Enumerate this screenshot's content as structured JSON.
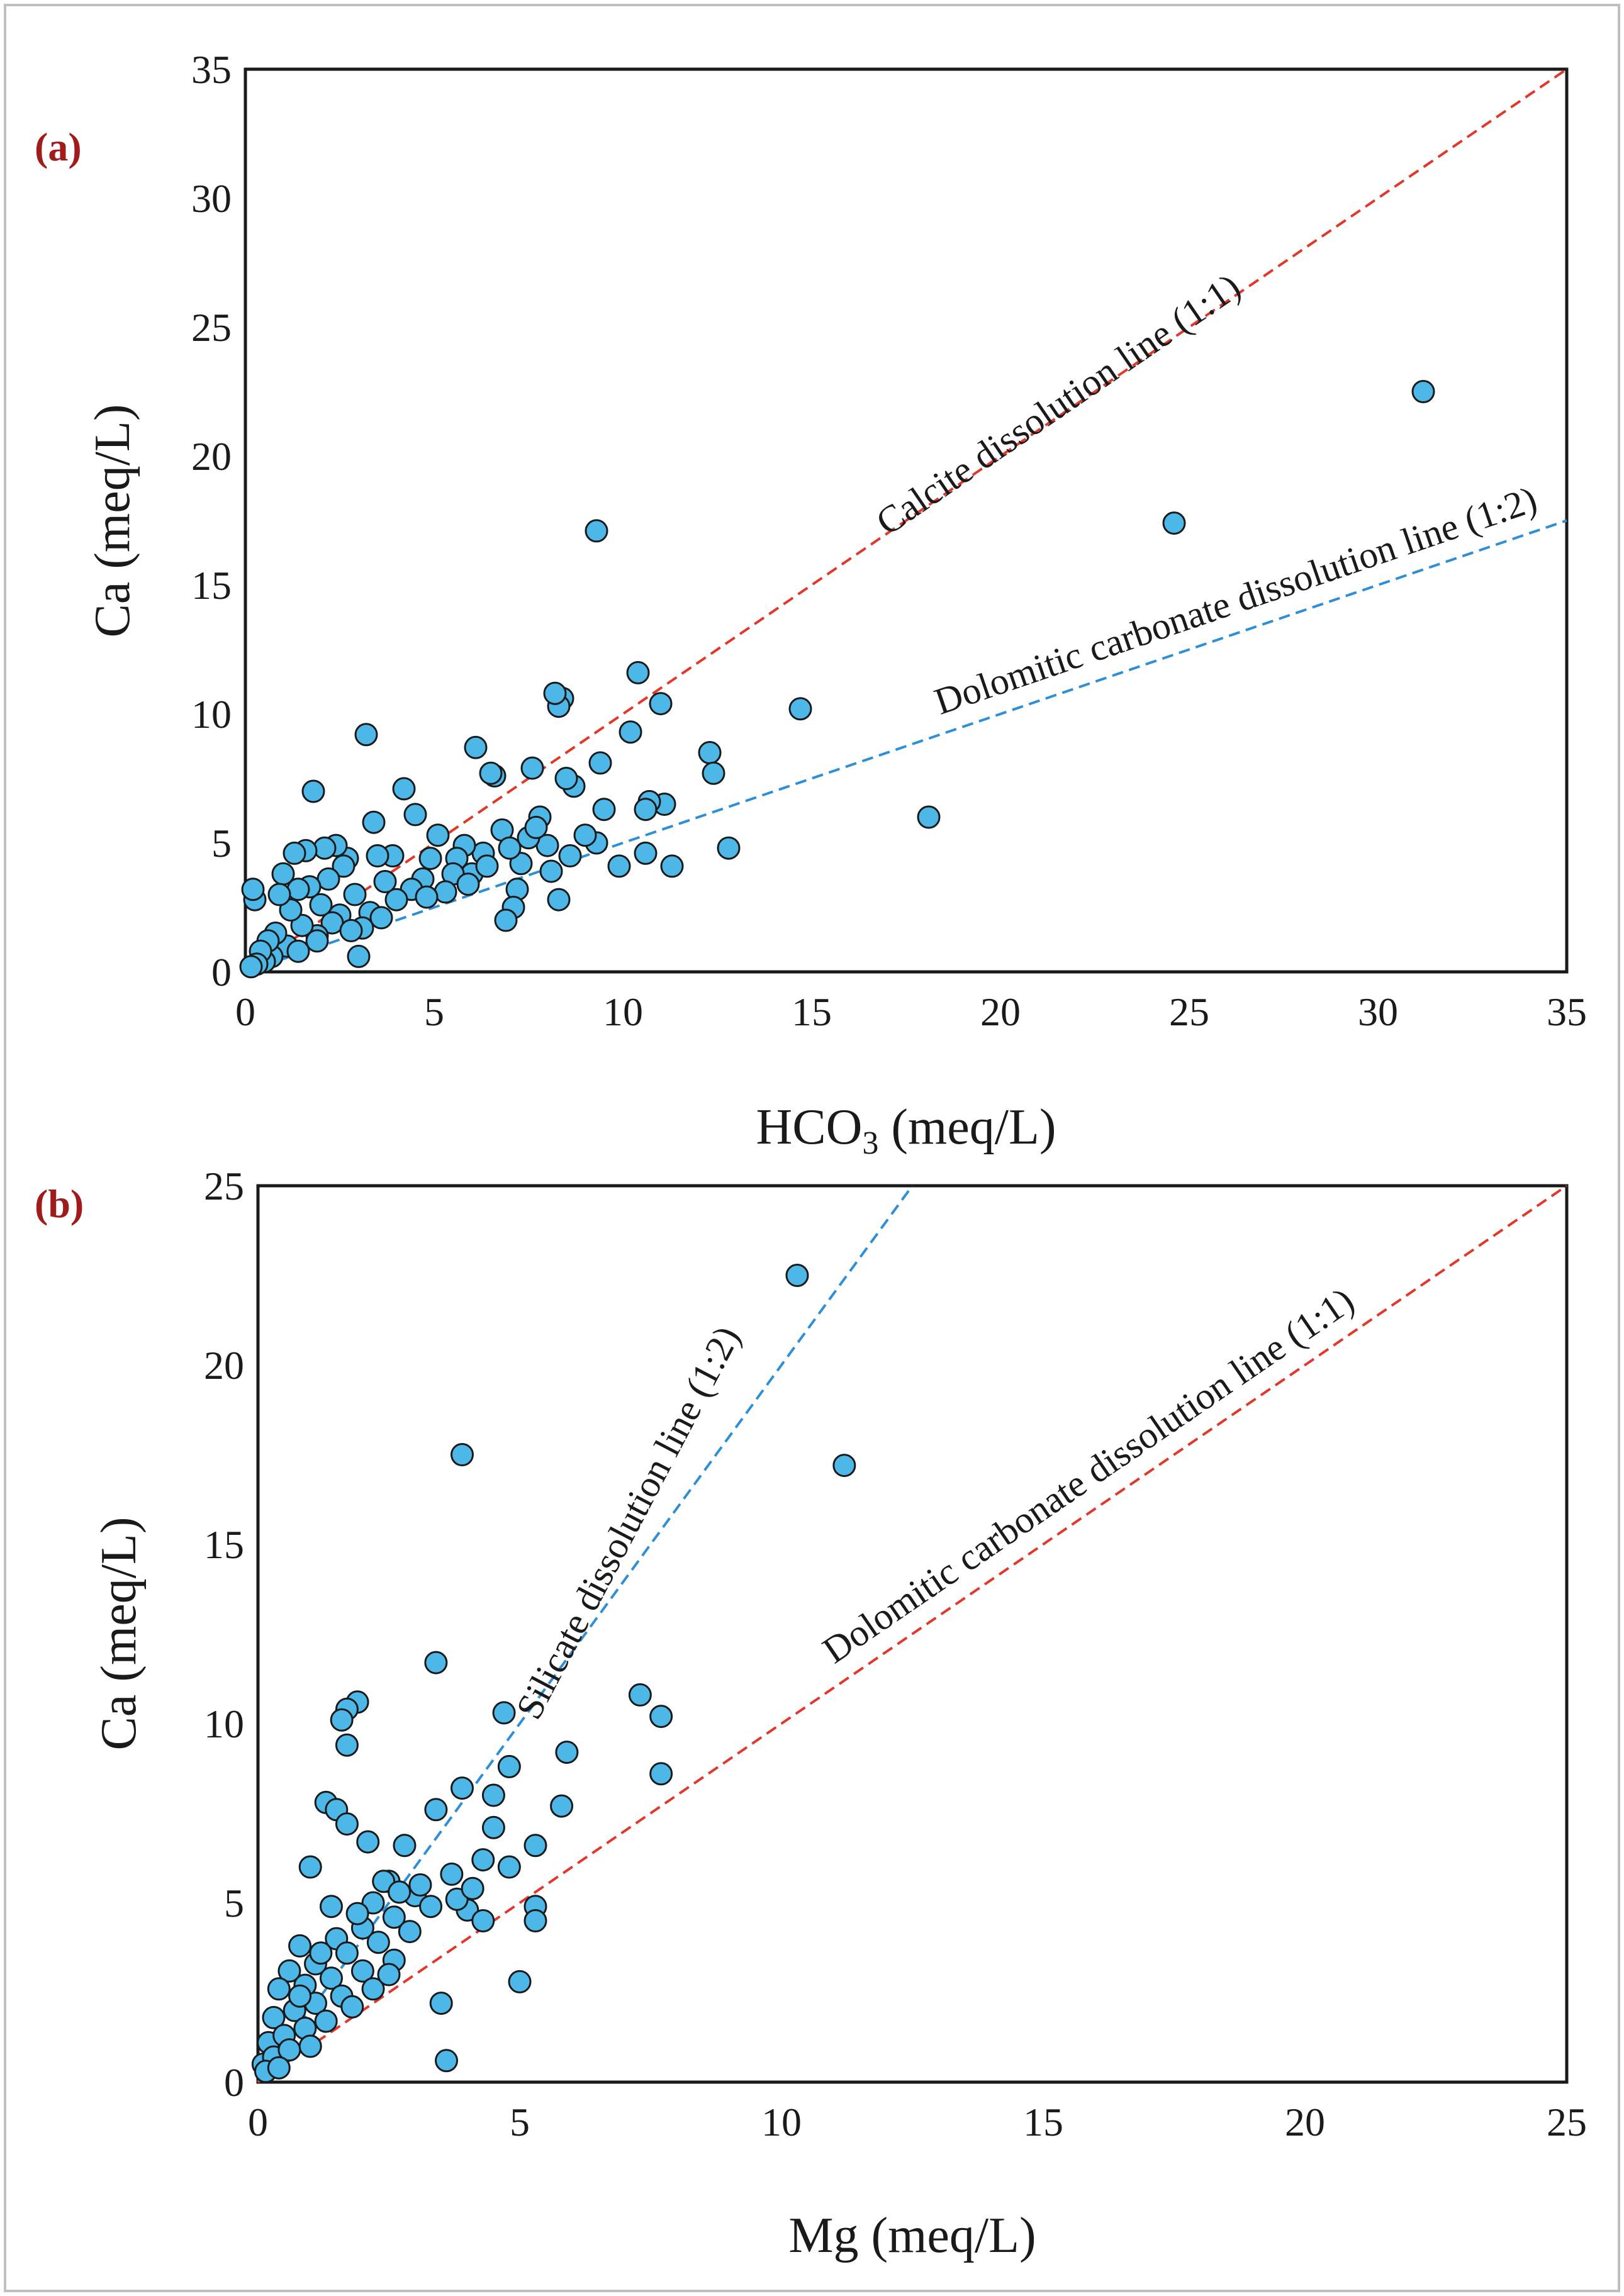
{
  "figure": {
    "border_color": "#bfbfbf",
    "marker_fill": "#4db8e8",
    "marker_stroke": "#1a1a1a"
  },
  "chart_data": [
    {
      "type": "scatter",
      "panel_label": "(a)",
      "xlabel": "HCO3 (meq/L)",
      "xlabel_parts": {
        "base": "HCO",
        "sub": "3",
        "rest": " (meq/L)"
      },
      "ylabel": "Ca (meq/L)",
      "xlim": [
        0,
        35
      ],
      "ylim": [
        0,
        35
      ],
      "xticks": [
        "0",
        "5",
        "10",
        "15",
        "20",
        "25",
        "30",
        "35"
      ],
      "yticks": [
        "0",
        "5",
        "10",
        "15",
        "20",
        "25",
        "30",
        "35"
      ],
      "tick_step": 5,
      "reference_lines": [
        {
          "label": "Calcite dissolution line (1:1)",
          "slope": 1,
          "color": "#e0392b"
        },
        {
          "label": "Dolomitic carbonate dissolution line (1:2)",
          "slope": 0.5,
          "color": "#2f8fd6"
        }
      ],
      "points": [
        [
          31.2,
          22.5
        ],
        [
          24.6,
          17.4
        ],
        [
          9.3,
          17.1
        ],
        [
          18.1,
          6.0
        ],
        [
          14.7,
          10.2
        ],
        [
          12.8,
          4.8
        ],
        [
          12.3,
          8.5
        ],
        [
          12.4,
          7.7
        ],
        [
          11.3,
          4.1
        ],
        [
          11.0,
          10.4
        ],
        [
          11.1,
          6.5
        ],
        [
          10.7,
          6.6
        ],
        [
          10.6,
          6.3
        ],
        [
          10.4,
          11.6
        ],
        [
          10.6,
          4.6
        ],
        [
          10.2,
          9.3
        ],
        [
          9.9,
          4.1
        ],
        [
          9.5,
          6.3
        ],
        [
          9.4,
          8.1
        ],
        [
          9.3,
          5.0
        ],
        [
          9.0,
          5.3
        ],
        [
          8.7,
          7.2
        ],
        [
          8.6,
          4.5
        ],
        [
          8.4,
          10.6
        ],
        [
          8.3,
          10.3
        ],
        [
          8.5,
          7.5
        ],
        [
          8.2,
          10.8
        ],
        [
          8.3,
          2.8
        ],
        [
          8.0,
          4.9
        ],
        [
          7.8,
          6.0
        ],
        [
          7.6,
          7.9
        ],
        [
          7.5,
          5.2
        ],
        [
          7.3,
          4.2
        ],
        [
          7.2,
          3.2
        ],
        [
          7.1,
          2.5
        ],
        [
          6.9,
          2.0
        ],
        [
          6.8,
          5.5
        ],
        [
          6.6,
          7.6
        ],
        [
          6.5,
          7.7
        ],
        [
          6.3,
          4.6
        ],
        [
          6.1,
          8.7
        ],
        [
          6.0,
          3.8
        ],
        [
          5.8,
          4.9
        ],
        [
          5.6,
          4.4
        ],
        [
          5.5,
          3.8
        ],
        [
          5.3,
          3.1
        ],
        [
          5.1,
          5.3
        ],
        [
          4.9,
          4.4
        ],
        [
          4.7,
          3.6
        ],
        [
          4.5,
          6.1
        ],
        [
          4.4,
          3.2
        ],
        [
          4.2,
          7.1
        ],
        [
          4.0,
          2.8
        ],
        [
          3.9,
          4.5
        ],
        [
          3.7,
          3.5
        ],
        [
          3.5,
          4.5
        ],
        [
          3.4,
          5.8
        ],
        [
          3.3,
          2.3
        ],
        [
          3.2,
          9.2
        ],
        [
          3.1,
          1.7
        ],
        [
          3.0,
          0.6
        ],
        [
          2.9,
          3.0
        ],
        [
          2.7,
          4.4
        ],
        [
          2.6,
          4.1
        ],
        [
          2.5,
          2.2
        ],
        [
          2.4,
          4.9
        ],
        [
          2.3,
          1.9
        ],
        [
          2.2,
          3.6
        ],
        [
          2.1,
          4.8
        ],
        [
          2.0,
          2.6
        ],
        [
          1.9,
          1.4
        ],
        [
          1.8,
          7.0
        ],
        [
          1.7,
          3.3
        ],
        [
          1.6,
          4.7
        ],
        [
          1.5,
          1.8
        ],
        [
          1.4,
          3.2
        ],
        [
          1.3,
          4.6
        ],
        [
          1.2,
          2.4
        ],
        [
          1.1,
          1.0
        ],
        [
          1.0,
          3.8
        ],
        [
          0.9,
          3.0
        ],
        [
          0.8,
          1.5
        ],
        [
          0.7,
          0.6
        ],
        [
          0.6,
          1.2
        ],
        [
          0.5,
          0.4
        ],
        [
          0.4,
          0.8
        ],
        [
          0.3,
          0.3
        ],
        [
          0.25,
          2.8
        ],
        [
          0.2,
          3.2
        ],
        [
          0.15,
          0.2
        ],
        [
          5.9,
          3.4
        ],
        [
          6.4,
          4.1
        ],
        [
          7.0,
          4.8
        ],
        [
          7.7,
          5.6
        ],
        [
          8.1,
          3.9
        ],
        [
          4.8,
          2.9
        ],
        [
          3.6,
          2.1
        ],
        [
          2.8,
          1.6
        ],
        [
          1.9,
          1.2
        ],
        [
          1.4,
          0.8
        ]
      ]
    },
    {
      "type": "scatter",
      "panel_label": "(b)",
      "xlabel": "Mg (meq/L)",
      "ylabel": "Ca (meq/L)",
      "xlim": [
        0,
        25
      ],
      "ylim": [
        0,
        25
      ],
      "xticks": [
        "0",
        "5",
        "10",
        "15",
        "20",
        "25"
      ],
      "yticks": [
        "0",
        "5",
        "10",
        "15",
        "20",
        "25"
      ],
      "tick_step": 5,
      "reference_lines": [
        {
          "label": "Silicate dissolution line (1:2)",
          "slope": 2,
          "color": "#2f8fd6"
        },
        {
          "label": "Dolomitic carbonate dissolution line (1:1)",
          "slope": 1,
          "color": "#e0392b"
        }
      ],
      "points": [
        [
          10.3,
          22.5
        ],
        [
          3.9,
          17.5
        ],
        [
          11.2,
          17.2
        ],
        [
          3.4,
          11.7
        ],
        [
          7.3,
          10.8
        ],
        [
          1.9,
          10.6
        ],
        [
          1.7,
          10.4
        ],
        [
          1.6,
          10.1
        ],
        [
          7.7,
          10.2
        ],
        [
          4.7,
          10.3
        ],
        [
          1.7,
          9.4
        ],
        [
          5.9,
          9.2
        ],
        [
          4.8,
          8.8
        ],
        [
          7.7,
          8.6
        ],
        [
          3.9,
          8.2
        ],
        [
          4.5,
          8.0
        ],
        [
          1.3,
          7.8
        ],
        [
          5.8,
          7.7
        ],
        [
          1.5,
          7.6
        ],
        [
          3.4,
          7.6
        ],
        [
          1.7,
          7.2
        ],
        [
          4.5,
          7.1
        ],
        [
          2.8,
          6.6
        ],
        [
          5.3,
          6.6
        ],
        [
          2.1,
          6.7
        ],
        [
          1.0,
          6.0
        ],
        [
          4.3,
          6.2
        ],
        [
          4.8,
          6.0
        ],
        [
          2.5,
          5.6
        ],
        [
          3.7,
          5.8
        ],
        [
          1.4,
          4.9
        ],
        [
          2.2,
          5.0
        ],
        [
          3.0,
          5.2
        ],
        [
          5.3,
          4.9
        ],
        [
          5.3,
          4.5
        ],
        [
          0.8,
          3.8
        ],
        [
          1.5,
          4.0
        ],
        [
          2.0,
          4.3
        ],
        [
          2.6,
          4.6
        ],
        [
          3.3,
          4.9
        ],
        [
          4.0,
          4.8
        ],
        [
          4.3,
          4.5
        ],
        [
          0.6,
          3.1
        ],
        [
          1.1,
          3.3
        ],
        [
          1.7,
          3.6
        ],
        [
          2.3,
          3.9
        ],
        [
          2.9,
          4.2
        ],
        [
          0.4,
          2.6
        ],
        [
          0.9,
          2.7
        ],
        [
          1.4,
          2.9
        ],
        [
          2.0,
          3.1
        ],
        [
          2.6,
          3.4
        ],
        [
          5.0,
          2.8
        ],
        [
          0.3,
          1.8
        ],
        [
          0.7,
          2.0
        ],
        [
          1.1,
          2.2
        ],
        [
          1.6,
          2.4
        ],
        [
          2.2,
          2.6
        ],
        [
          3.5,
          2.2
        ],
        [
          0.2,
          1.1
        ],
        [
          0.5,
          1.3
        ],
        [
          0.9,
          1.5
        ],
        [
          1.3,
          1.7
        ],
        [
          0.1,
          0.5
        ],
        [
          0.3,
          0.7
        ],
        [
          0.6,
          0.9
        ],
        [
          3.6,
          0.6
        ],
        [
          0.15,
          0.3
        ],
        [
          0.4,
          0.4
        ],
        [
          1.0,
          1.0
        ],
        [
          2.4,
          5.6
        ],
        [
          2.7,
          5.3
        ],
        [
          3.1,
          5.5
        ],
        [
          1.9,
          4.7
        ],
        [
          1.2,
          3.6
        ],
        [
          0.8,
          2.4
        ],
        [
          2.5,
          3.0
        ],
        [
          1.8,
          2.1
        ],
        [
          3.8,
          5.1
        ],
        [
          4.1,
          5.4
        ]
      ]
    }
  ]
}
